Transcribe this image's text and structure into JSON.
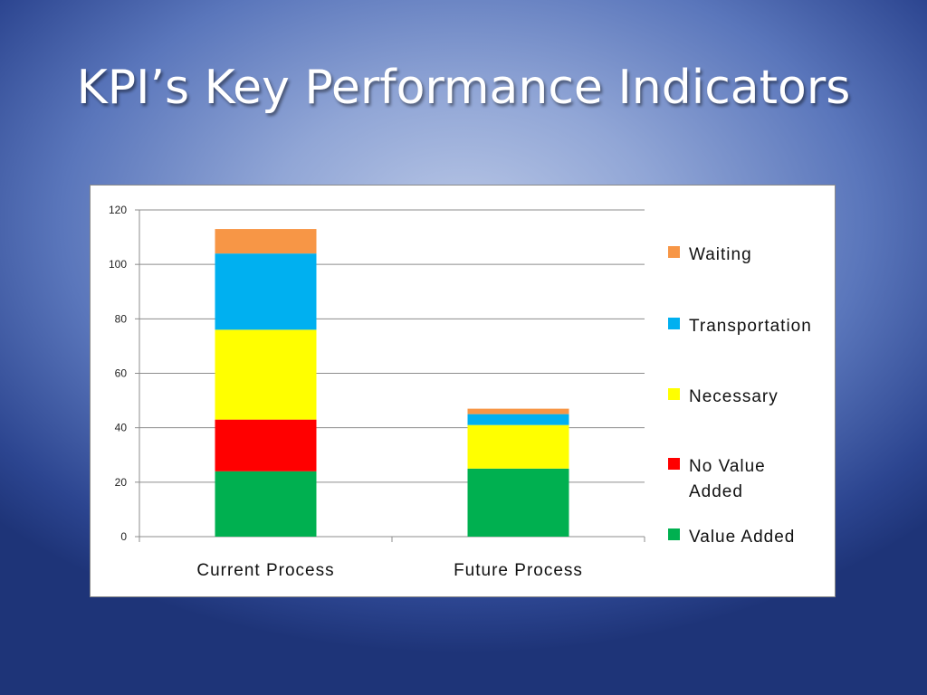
{
  "slide": {
    "title": "KPI’s Key Performance Indicators"
  },
  "chart_data": {
    "type": "bar",
    "stacked": true,
    "categories": [
      "Current Process",
      "Future Process"
    ],
    "series": [
      {
        "name": "Value Added",
        "color": "#00b050",
        "values": [
          24,
          25
        ]
      },
      {
        "name": "No Value Added",
        "color": "#ff0000",
        "values": [
          19,
          0
        ]
      },
      {
        "name": "Necessary",
        "color": "#ffff00",
        "values": [
          33,
          16
        ]
      },
      {
        "name": "Transportation",
        "color": "#00b0f0",
        "values": [
          28,
          4
        ]
      },
      {
        "name": "Waiting",
        "color": "#f79646",
        "values": [
          9,
          2
        ]
      }
    ],
    "ylim": [
      0,
      120
    ],
    "yticks": [
      0,
      20,
      40,
      60,
      80,
      100,
      120
    ],
    "grid": true,
    "legend_position": "right",
    "legend_labels": [
      [
        "Waiting"
      ],
      [
        "Transportation"
      ],
      [
        "Necessary"
      ],
      [
        "No Value",
        "Added"
      ],
      [
        "Value Added"
      ]
    ],
    "title": "",
    "xlabel": "",
    "ylabel": ""
  }
}
